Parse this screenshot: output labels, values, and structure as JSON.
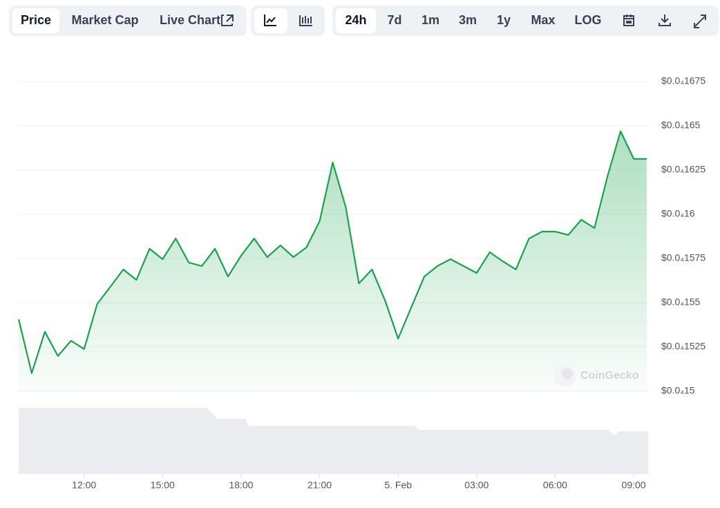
{
  "toolbar": {
    "view_tabs": [
      "Price",
      "Market Cap",
      "Live Chart"
    ],
    "ranges": [
      "24h",
      "7d",
      "1m",
      "3m",
      "1y",
      "Max",
      "LOG"
    ]
  },
  "watermark": "CoinGecko",
  "chart_data": {
    "type": "area",
    "x": [
      9.5,
      10,
      10.5,
      11,
      11.5,
      12,
      12.5,
      13,
      13.5,
      14,
      14.5,
      15,
      15.5,
      16,
      16.5,
      17,
      17.5,
      18,
      18.5,
      19,
      19.5,
      20,
      20.5,
      21,
      21.5,
      22,
      22.5,
      23,
      23.5,
      24,
      24.5,
      25,
      25.5,
      26,
      26.5,
      27,
      27.5,
      28,
      28.5,
      29,
      29.5,
      30,
      30.5,
      31,
      31.5,
      32,
      32.5,
      33,
      33.5
    ],
    "series": [
      {
        "name": "Price",
        "color": "#16a34a",
        "values": [
          1.5406e-05,
          1.5102e-05,
          1.5336e-05,
          1.5199e-05,
          1.5285e-05,
          1.5238e-05,
          1.5492e-05,
          1.559e-05,
          1.5688e-05,
          1.5629e-05,
          1.5805e-05,
          1.5746e-05,
          1.5863e-05,
          1.5727e-05,
          1.5707e-05,
          1.5805e-05,
          1.5648e-05,
          1.5766e-05,
          1.5863e-05,
          1.5758e-05,
          1.5824e-05,
          1.5758e-05,
          1.5813e-05,
          1.5961e-05,
          1.6293e-05,
          1.6039e-05,
          1.5609e-05,
          1.5688e-05,
          1.5512e-05,
          1.5297e-05,
          1.5473e-05,
          1.5648e-05,
          1.5707e-05,
          1.5746e-05,
          1.5707e-05,
          1.5668e-05,
          1.5785e-05,
          1.5734e-05,
          1.5688e-05,
          1.5863e-05,
          1.5902e-05,
          1.5902e-05,
          1.5883e-05,
          1.5969e-05,
          1.5922e-05,
          1.6215e-05,
          1.6469e-05,
          1.6313e-05,
          1.6313e-05
        ]
      }
    ],
    "xlim": [
      9.5,
      33.5
    ],
    "xticks": [
      {
        "value": 12,
        "label": "12:00"
      },
      {
        "value": 15,
        "label": "15:00"
      },
      {
        "value": 18,
        "label": "18:00"
      },
      {
        "value": 21,
        "label": "21:00"
      },
      {
        "value": 24,
        "label": "5. Feb"
      },
      {
        "value": 27,
        "label": "03:00"
      },
      {
        "value": 30,
        "label": "06:00"
      },
      {
        "value": 33,
        "label": "09:00"
      }
    ],
    "ylim": [
      1.5e-05,
      1.675e-05
    ],
    "yticks": [
      {
        "value": 1.675e-05,
        "label": "$0.0₄1675"
      },
      {
        "value": 1.65e-05,
        "label": "$0.0₄165"
      },
      {
        "value": 1.625e-05,
        "label": "$0.0₄1625"
      },
      {
        "value": 1.6e-05,
        "label": "$0.0₄16"
      },
      {
        "value": 1.575e-05,
        "label": "$0.0₄1575"
      },
      {
        "value": 1.55e-05,
        "label": "$0.0₄155"
      },
      {
        "value": 1.525e-05,
        "label": "$0.0₄1525"
      },
      {
        "value": 1.5e-05,
        "label": "$0.0₄15"
      }
    ],
    "grid": true
  }
}
